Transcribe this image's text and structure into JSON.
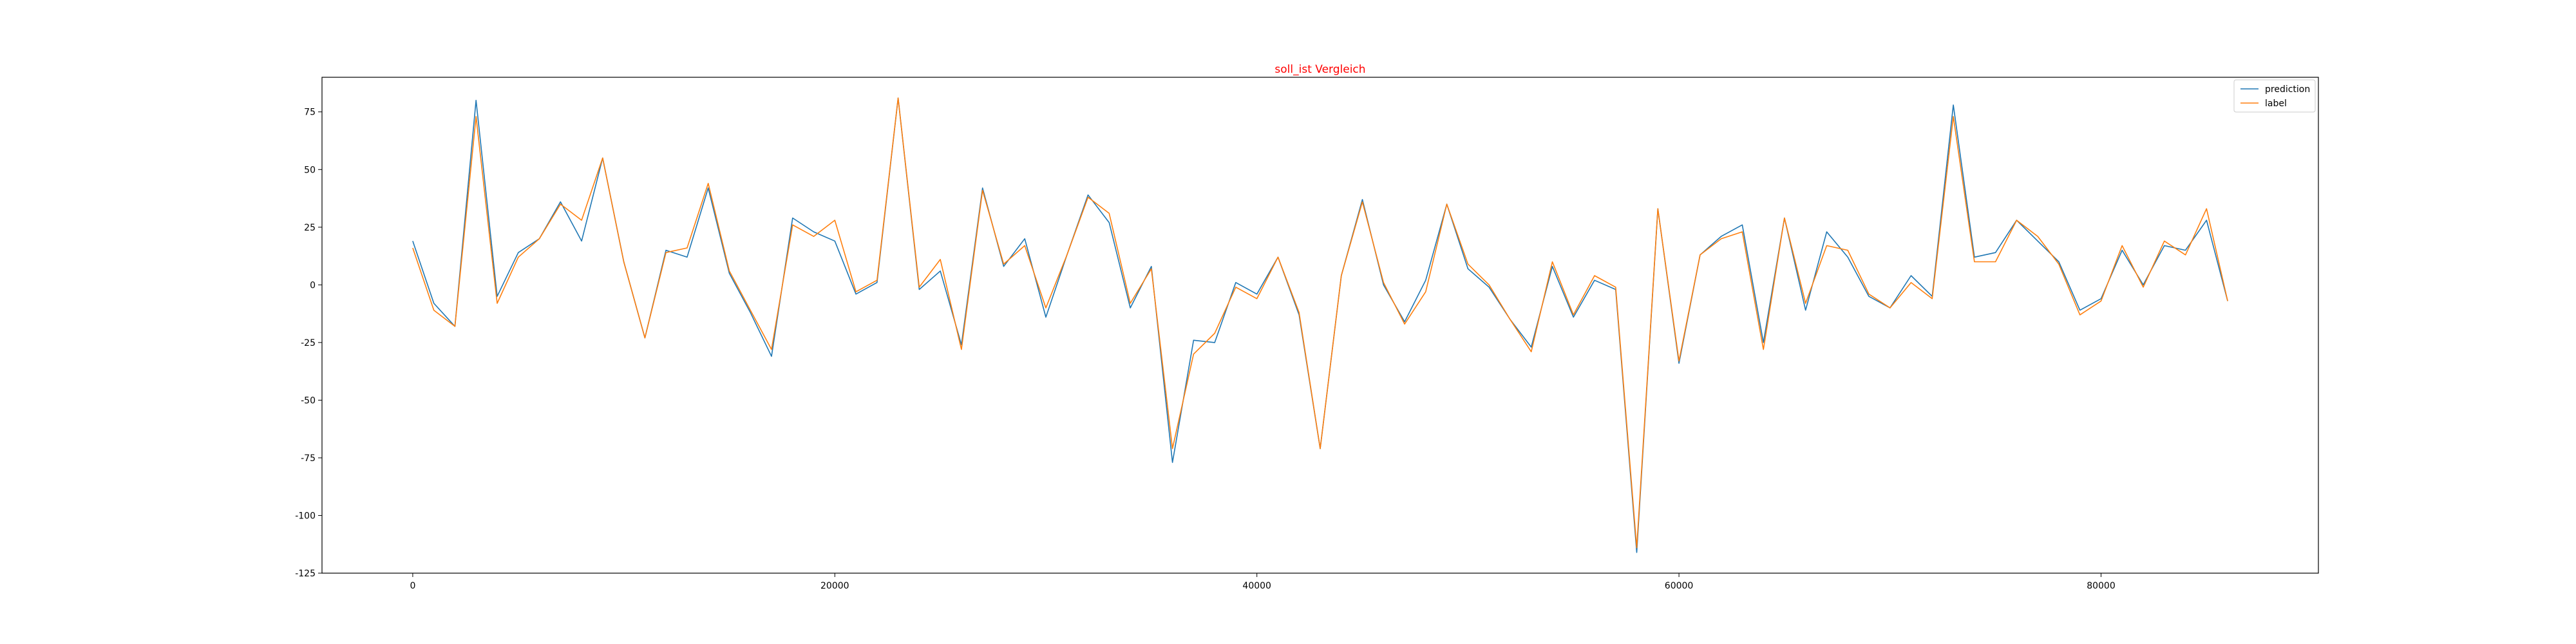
{
  "chart_data": {
    "type": "line",
    "title": "soll_ist Vergleich",
    "xlabel": "",
    "ylabel": "",
    "xlim": [
      -4300,
      90300
    ],
    "ylim": [
      -125,
      90
    ],
    "xticks": [
      0,
      20000,
      40000,
      60000,
      80000
    ],
    "yticks": [
      75,
      50,
      25,
      0,
      -25,
      -50,
      -75,
      -100,
      -125
    ],
    "grid": false,
    "legend": "top-right",
    "colors": {
      "prediction": "#1f77b4",
      "label": "#ff7f0e",
      "title": "#ff0000"
    },
    "x": [
      0,
      1000,
      2000,
      3000,
      4000,
      5000,
      6000,
      7000,
      8000,
      9000,
      10000,
      11000,
      12000,
      13000,
      14000,
      15000,
      16000,
      17000,
      18000,
      19000,
      20000,
      21000,
      22000,
      23000,
      24000,
      25000,
      26000,
      27000,
      28000,
      29000,
      30000,
      31000,
      32000,
      33000,
      34000,
      35000,
      36000,
      37000,
      38000,
      39000,
      40000,
      41000,
      42000,
      43000,
      44000,
      45000,
      46000,
      47000,
      48000,
      49000,
      50000,
      51000,
      52000,
      53000,
      54000,
      55000,
      56000,
      57000,
      58000,
      59000,
      60000,
      61000,
      62000,
      63000,
      64000,
      65000,
      66000,
      67000,
      68000,
      69000,
      70000,
      71000,
      72000,
      73000,
      74000,
      75000,
      76000,
      77000,
      78000,
      79000,
      80000,
      81000,
      82000,
      83000,
      84000,
      85000,
      86000
    ],
    "series": [
      {
        "name": "prediction",
        "values": [
          19,
          -8,
          -18,
          80,
          -5,
          14,
          20,
          36,
          19,
          55,
          10,
          -23,
          15,
          12,
          42,
          5,
          -12,
          -31,
          29,
          23,
          19,
          -4,
          1,
          81,
          -2,
          6,
          -26,
          42,
          8,
          20,
          -14,
          13,
          39,
          27,
          -10,
          8,
          -77,
          -24,
          -25,
          1,
          -4,
          12,
          -13,
          -71,
          4,
          37,
          0,
          -16,
          2,
          35,
          7,
          -1,
          -15,
          -27,
          8,
          -14,
          2,
          -2,
          -116,
          33,
          -34,
          13,
          21,
          26,
          -25,
          29,
          -11,
          23,
          12,
          -5,
          -10,
          4,
          -5,
          78,
          12,
          14,
          28,
          19,
          10,
          -11,
          -6,
          15,
          0,
          17,
          15,
          28,
          -7
        ]
      },
      {
        "name": "label",
        "values": [
          16,
          -11,
          -18,
          73,
          -8,
          12,
          20,
          35,
          28,
          55,
          10,
          -23,
          14,
          16,
          44,
          6,
          -11,
          -28,
          26,
          21,
          28,
          -3,
          2,
          81,
          -1,
          11,
          -28,
          41,
          9,
          17,
          -10,
          13,
          38,
          31,
          -8,
          7,
          -71,
          -30,
          -21,
          -1,
          -6,
          12,
          -12,
          -71,
          4,
          36,
          1,
          -17,
          -3,
          35,
          9,
          0,
          -15,
          -29,
          10,
          -13,
          4,
          -1,
          -114,
          33,
          -33,
          13,
          20,
          23,
          -28,
          29,
          -8,
          17,
          15,
          -4,
          -10,
          1,
          -6,
          73,
          10,
          10,
          28,
          21,
          9,
          -13,
          -7,
          17,
          -1,
          19,
          13,
          33,
          -7
        ]
      }
    ]
  }
}
